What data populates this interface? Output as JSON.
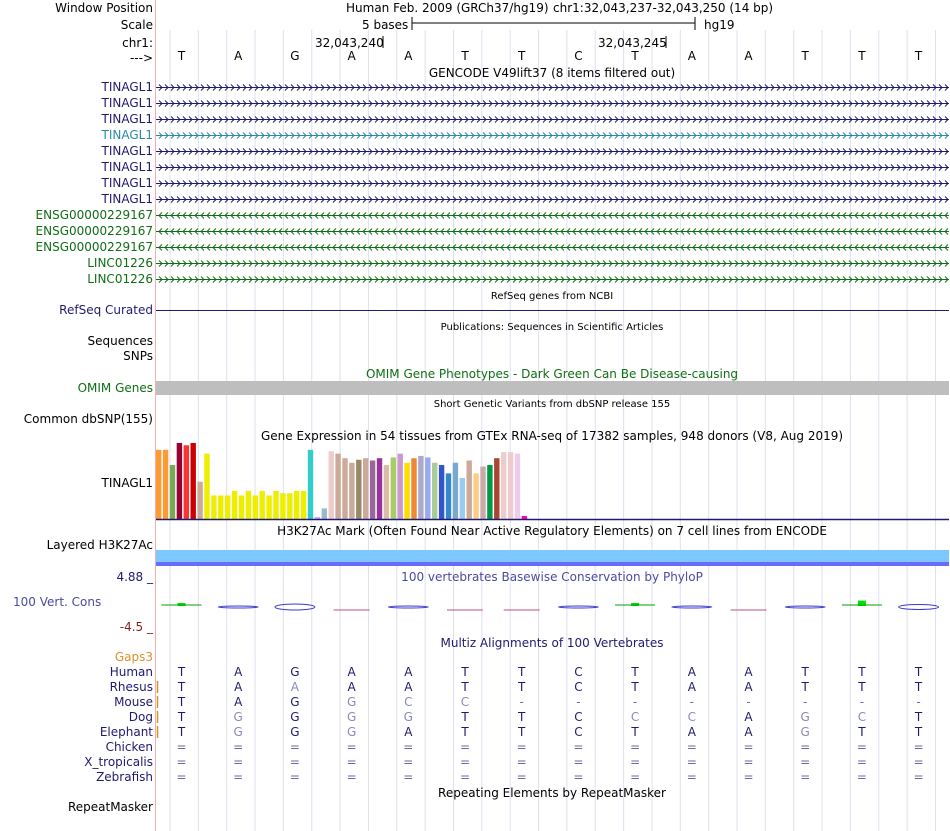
{
  "header": {
    "window_position_label": "Window Position",
    "scale_label": "Scale",
    "chrom_label": "chr1:",
    "strand_label": "--->",
    "assembly": "Human Feb. 2009 (GRCh37/hg19)",
    "position": "chr1:32,043,237-32,043,250 (14 bp)",
    "scale_bases": "5 bases",
    "scale_db": "hg19",
    "coord_left": "32,043,240",
    "coord_right": "32,043,245"
  },
  "bases": [
    "T",
    "A",
    "G",
    "A",
    "A",
    "T",
    "T",
    "C",
    "T",
    "A",
    "A",
    "T",
    "T",
    "T"
  ],
  "gencode": {
    "title": "GENCODE V49lift37 (8 items filtered out)",
    "tracks": [
      {
        "name": "TINAGL1",
        "strand": "+",
        "color": "#1f1a6e"
      },
      {
        "name": "TINAGL1",
        "strand": "+",
        "color": "#1f1a6e"
      },
      {
        "name": "TINAGL1",
        "strand": "+",
        "color": "#1f1a6e"
      },
      {
        "name": "TINAGL1",
        "strand": "+",
        "color": "#2a8aa8"
      },
      {
        "name": "TINAGL1",
        "strand": "+",
        "color": "#1f1a6e"
      },
      {
        "name": "TINAGL1",
        "strand": "+",
        "color": "#1f1a6e"
      },
      {
        "name": "TINAGL1",
        "strand": "+",
        "color": "#1f1a6e"
      },
      {
        "name": "TINAGL1",
        "strand": "+",
        "color": "#1f1a6e"
      },
      {
        "name": "ENSG00000229167",
        "strand": "-",
        "color": "#0f6e14"
      },
      {
        "name": "ENSG00000229167",
        "strand": "-",
        "color": "#0f6e14"
      },
      {
        "name": "ENSG00000229167",
        "strand": "-",
        "color": "#0f6e14"
      },
      {
        "name": "LINC01226",
        "strand": "+",
        "color": "#0f6e14"
      },
      {
        "name": "LINC01226",
        "strand": "+",
        "color": "#0f6e14"
      }
    ]
  },
  "refseq": {
    "title": "RefSeq genes from NCBI",
    "label": "RefSeq Curated"
  },
  "publications": {
    "title": "Publications: Sequences in Scientific Articles",
    "label1": "Sequences",
    "label2": "SNPs"
  },
  "omim": {
    "title": "OMIM Gene Phenotypes - Dark Green Can Be Disease-causing",
    "label": "OMIM Genes"
  },
  "dbsnp": {
    "title": "Short Genetic Variants from dbSNP release 155",
    "label": "Common dbSNP(155)"
  },
  "gtex": {
    "title": "Gene Expression in 54 tissues from GTEx RNA-seq of 17382 samples, 948 donors (V8, Aug 2019)",
    "label": "TINAGL1",
    "values": [
      0.91,
      0.91,
      0.71,
      1.0,
      0.97,
      1.0,
      0.49,
      0.86,
      0.31,
      0.31,
      0.31,
      0.37,
      0.31,
      0.37,
      0.31,
      0.37,
      0.31,
      0.37,
      0.34,
      0.34,
      0.37,
      0.37,
      0.91,
      0.02,
      0.14,
      0.89,
      0.86,
      0.8,
      0.74,
      0.78,
      0.8,
      0.77,
      0.8,
      0.71,
      0.81,
      0.86,
      0.74,
      0.8,
      0.83,
      0.81,
      0.74,
      0.71,
      0.6,
      0.74,
      0.54,
      0.77,
      0.6,
      0.69,
      0.71,
      0.8,
      0.88,
      0.88,
      0.86,
      0.04
    ],
    "colors": [
      "#ff9933",
      "#ff9933",
      "#77aa55",
      "#990033",
      "#ff3333",
      "#cc0000",
      "#ccaa99",
      "#eeee00",
      "#eeee00",
      "#eeee00",
      "#eeee00",
      "#eeee00",
      "#eeee00",
      "#eeee00",
      "#eeee00",
      "#eeee00",
      "#eeee00",
      "#eeee00",
      "#eeee00",
      "#eeee00",
      "#eeee00",
      "#eeee00",
      "#33cccc",
      "#ccaaee",
      "#99bbcc",
      "#eecccc",
      "#ccaa99",
      "#ccaa99",
      "#ccaa99",
      "#998866",
      "#ccaa99",
      "#996699",
      "#993399",
      "#ddbbaa",
      "#aacc66",
      "#cc99cc",
      "#ffdd00",
      "#ee8833",
      "#aaaacc",
      "#99aaee",
      "#aacc99",
      "#3355cc",
      "#3388cc",
      "#77aacc",
      "#99ccee",
      "#ccaa99",
      "#ffcc88",
      "#ccaaaa",
      "#009944",
      "#aa4433",
      "#eecccc",
      "#eecccc",
      "#eeccee",
      "#ff00bb"
    ]
  },
  "h3k27ac": {
    "title": "H3K27Ac Mark (Often Found Near Active Regulatory Elements) on 7 cell lines from ENCODE",
    "label": "Layered H3K27Ac"
  },
  "phylop": {
    "title": "100 vertebrates Basewise Conservation by PhyloP",
    "label": "100 Vert. Cons",
    "max": "4.88 _",
    "min": "-4.5 _",
    "values": [
      0.5,
      -0.4,
      -1.2,
      0.0,
      -0.2,
      0.0,
      0.0,
      -0.2,
      0.5,
      -0.2,
      0.0,
      -0.3,
      0.9,
      -1.0
    ]
  },
  "multiz": {
    "title": "Multiz Alignments of 100 Vertebrates",
    "gaps_label": "Gaps3",
    "species": [
      {
        "name": "Human",
        "seq": [
          "T",
          "A",
          "G",
          "A",
          "A",
          "T",
          "T",
          "C",
          "T",
          "A",
          "A",
          "T",
          "T",
          "T"
        ]
      },
      {
        "name": "Rhesus",
        "seq": [
          "T",
          "A",
          "A",
          "A",
          "A",
          "T",
          "T",
          "C",
          "T",
          "A",
          "A",
          "T",
          "T",
          "T"
        ]
      },
      {
        "name": "Mouse",
        "seq": [
          "T",
          "A",
          "G",
          "G",
          "C",
          "C",
          "-",
          "-",
          "-",
          "-",
          "-",
          "-",
          "-",
          "-"
        ]
      },
      {
        "name": "Dog",
        "seq": [
          "T",
          "G",
          "G",
          "G",
          "G",
          "T",
          "T",
          "C",
          "C",
          "C",
          "A",
          "G",
          "C",
          "T"
        ]
      },
      {
        "name": "Elephant",
        "seq": [
          "T",
          "G",
          "G",
          "G",
          "A",
          "T",
          "T",
          "C",
          "T",
          "A",
          "A",
          "G",
          "T",
          "T"
        ]
      },
      {
        "name": "Chicken",
        "seq": [
          "=",
          "=",
          "=",
          "=",
          "=",
          "=",
          "=",
          "=",
          "=",
          "=",
          "=",
          "=",
          "=",
          "="
        ]
      },
      {
        "name": "X_tropicalis",
        "seq": [
          "=",
          "=",
          "=",
          "=",
          "=",
          "=",
          "=",
          "=",
          "=",
          "=",
          "=",
          "=",
          "=",
          "="
        ]
      },
      {
        "name": "Zebrafish",
        "seq": [
          "=",
          "=",
          "=",
          "=",
          "=",
          "=",
          "=",
          "=",
          "=",
          "=",
          "=",
          "=",
          "=",
          "="
        ]
      }
    ]
  },
  "repeatmasker": {
    "title": "Repeating Elements by RepeatMasker",
    "label": "RepeatMasker"
  },
  "colors": {
    "navy": "#1f1a6e",
    "conservation": "#4a4aa0",
    "omim_bar": "#bebebe",
    "h3k27ac_top": "#7dc8ff",
    "h3k27ac_bottom": "#6a6aff",
    "gaps": "#d8902c",
    "mismatch": "#8a8ab8"
  }
}
